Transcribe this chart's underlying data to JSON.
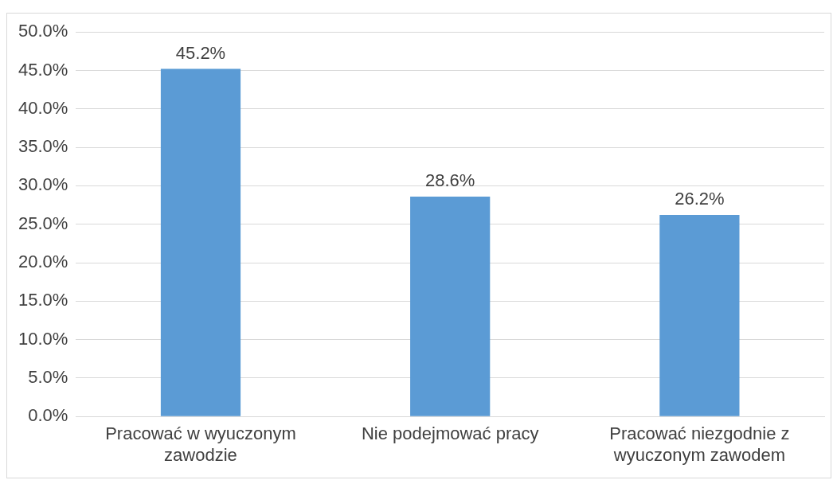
{
  "chart_data": {
    "type": "bar",
    "categories": [
      "Pracować w wyuczonym zawodzie",
      "Nie podejmować pracy",
      "Pracować niezgodnie z wyuczonym zawodem"
    ],
    "values": [
      45.2,
      28.6,
      26.2
    ],
    "color": "#5b9bd5",
    "ylim": [
      0,
      50
    ],
    "yticks": [
      {
        "value": 0,
        "label": "0.0%"
      },
      {
        "value": 5,
        "label": "5.0%"
      },
      {
        "value": 10,
        "label": "10.0%"
      },
      {
        "value": 15,
        "label": "15.0%"
      },
      {
        "value": 20,
        "label": "20.0%"
      },
      {
        "value": 25,
        "label": "25.0%"
      },
      {
        "value": 30,
        "label": "30.0%"
      },
      {
        "value": 35,
        "label": "35.0%"
      },
      {
        "value": 40,
        "label": "40.0%"
      },
      {
        "value": 45,
        "label": "45.0%"
      },
      {
        "value": 50,
        "label": "50.0%"
      }
    ],
    "value_labels": [
      "45.2%",
      "28.6%",
      "26.2%"
    ],
    "grid": "y",
    "legend": false
  }
}
